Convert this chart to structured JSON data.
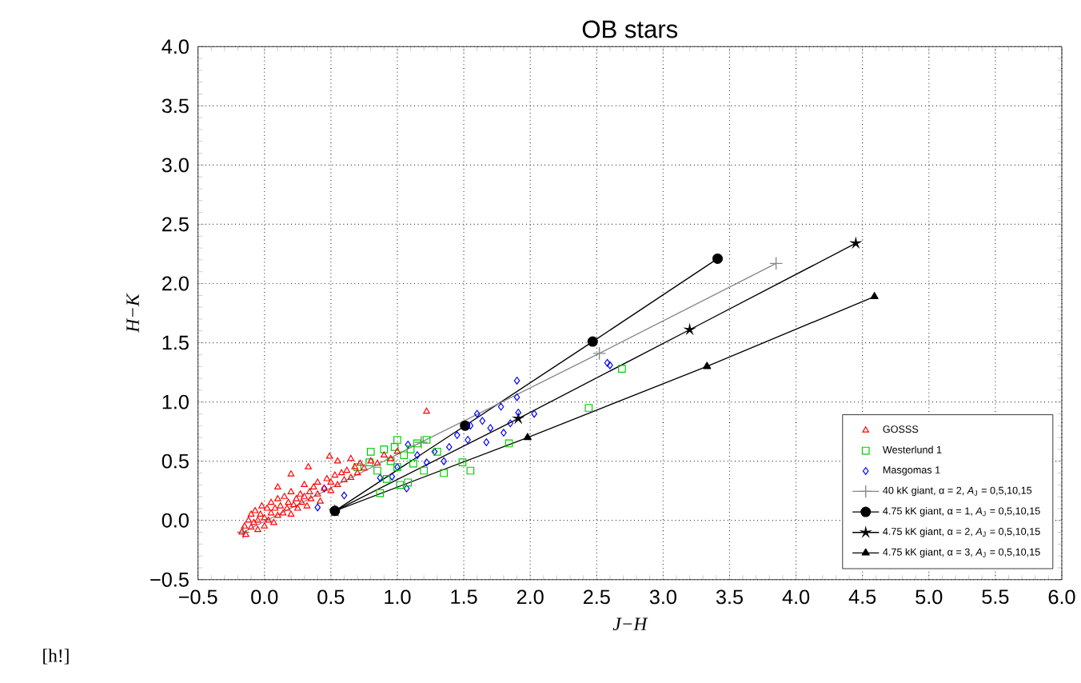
{
  "chart_data": {
    "type": "scatter",
    "title": "OB stars",
    "xlabel": "J−H",
    "ylabel": "H−K",
    "xlim": [
      -0.5,
      6.0
    ],
    "ylim": [
      -0.5,
      4.0
    ],
    "xticks": [
      {
        "value": -0.5,
        "label": "−0.5"
      },
      {
        "value": 0,
        "label": "0.0"
      },
      {
        "value": 0.5,
        "label": "0.5"
      },
      {
        "value": 1,
        "label": "1.0"
      },
      {
        "value": 1.5,
        "label": "1.5"
      },
      {
        "value": 2,
        "label": "2.0"
      },
      {
        "value": 2.5,
        "label": "2.5"
      },
      {
        "value": 3,
        "label": "3.0"
      },
      {
        "value": 3.5,
        "label": "3.5"
      },
      {
        "value": 4,
        "label": "4.0"
      },
      {
        "value": 4.5,
        "label": "4.5"
      },
      {
        "value": 5,
        "label": "5.0"
      },
      {
        "value": 5.5,
        "label": "5.5"
      },
      {
        "value": 6,
        "label": "6.0"
      }
    ],
    "yticks": [
      {
        "value": -0.5,
        "label": "−0.5"
      },
      {
        "value": 0,
        "label": "0.0"
      },
      {
        "value": 0.5,
        "label": "0.5"
      },
      {
        "value": 1,
        "label": "1.0"
      },
      {
        "value": 1.5,
        "label": "1.5"
      },
      {
        "value": 2,
        "label": "2.0"
      },
      {
        "value": 2.5,
        "label": "2.5"
      },
      {
        "value": 3,
        "label": "3.0"
      },
      {
        "value": 3.5,
        "label": "3.5"
      },
      {
        "value": 4,
        "label": "4.0"
      }
    ],
    "grid": true,
    "legend": "bottom right",
    "annotations": [
      "[h!]"
    ],
    "series": [
      {
        "name": "GOSSS",
        "marker": "triangle",
        "color": "#ff0000",
        "x": [
          -0.17,
          -0.15,
          -0.14,
          -0.12,
          -0.1,
          -0.1,
          -0.08,
          -0.07,
          -0.05,
          -0.05,
          -0.03,
          -0.02,
          0.0,
          0.0,
          0.02,
          0.03,
          0.05,
          0.05,
          0.07,
          0.08,
          0.1,
          0.1,
          0.12,
          0.14,
          0.15,
          0.17,
          0.18,
          0.2,
          0.2,
          0.22,
          0.24,
          0.25,
          0.27,
          0.28,
          0.3,
          0.3,
          0.32,
          0.34,
          0.35,
          0.37,
          0.4,
          0.4,
          0.42,
          0.45,
          0.47,
          0.5,
          0.5,
          0.53,
          0.55,
          0.58,
          0.6,
          0.62,
          0.65,
          0.68,
          0.7,
          0.72,
          0.75,
          0.8,
          0.85,
          0.9,
          0.95,
          0.33,
          0.2,
          0.49,
          0.55,
          1.22,
          0.1,
          1.0,
          0.65
        ],
        "values": [
          -0.1,
          -0.05,
          -0.12,
          0.0,
          -0.06,
          0.05,
          -0.02,
          0.08,
          0.0,
          -0.08,
          0.05,
          0.12,
          0.02,
          -0.05,
          0.1,
          0.0,
          0.06,
          0.15,
          -0.02,
          0.1,
          0.04,
          0.18,
          0.12,
          0.06,
          0.2,
          0.1,
          0.15,
          0.05,
          0.24,
          0.13,
          0.18,
          0.1,
          0.22,
          0.15,
          0.2,
          0.3,
          0.12,
          0.24,
          0.18,
          0.28,
          0.22,
          0.32,
          0.16,
          0.27,
          0.35,
          0.25,
          0.32,
          0.38,
          0.3,
          0.4,
          0.34,
          0.42,
          0.36,
          0.45,
          0.4,
          0.48,
          0.44,
          0.5,
          0.48,
          0.55,
          0.52,
          0.45,
          0.39,
          0.54,
          0.5,
          0.92,
          0.28,
          0.58,
          0.52
        ]
      },
      {
        "name": "Westerlund 1",
        "marker": "square",
        "color": "#00cc00",
        "x": [
          0.79,
          0.8,
          0.85,
          0.87,
          0.9,
          0.92,
          0.95,
          0.98,
          1.0,
          1.02,
          1.05,
          1.08,
          1.1,
          1.12,
          1.15,
          1.22,
          1.2,
          1.3,
          1.35,
          1.49,
          1.55,
          1.84,
          2.44,
          2.69,
          0.7,
          1.0
        ],
        "values": [
          0.49,
          0.58,
          0.42,
          0.23,
          0.6,
          0.35,
          0.5,
          0.62,
          0.45,
          0.3,
          0.55,
          0.32,
          0.6,
          0.48,
          0.65,
          0.68,
          0.42,
          0.58,
          0.4,
          0.49,
          0.42,
          0.65,
          0.95,
          1.28,
          0.45,
          0.68
        ]
      },
      {
        "name": "Masgomas 1",
        "marker": "diamond",
        "color": "#0000ff",
        "x": [
          0.45,
          0.6,
          0.4,
          1.9,
          1.9,
          1.78,
          1.64,
          1.91,
          2.03,
          1.8,
          1.67,
          1.53,
          1.39,
          1.28,
          1.22,
          1.08,
          0.96,
          1.07,
          0.87,
          2.58,
          2.6,
          1.0,
          1.15,
          1.45,
          1.7,
          1.85,
          1.55,
          1.35,
          1.6
        ],
        "values": [
          0.27,
          0.21,
          0.11,
          1.18,
          1.04,
          0.96,
          0.84,
          0.91,
          0.9,
          0.74,
          0.66,
          0.68,
          0.62,
          0.58,
          0.49,
          0.64,
          0.37,
          0.27,
          0.36,
          1.33,
          1.31,
          0.45,
          0.55,
          0.72,
          0.78,
          0.82,
          0.8,
          0.5,
          0.9
        ]
      },
      {
        "name": "40 kK giant,    α = 2, *A*$_{J}$ = 0,5,10,15",
        "type": "line",
        "marker": "cross",
        "color": "#888888",
        "x": [
          -0.16,
          1.18,
          2.52,
          3.85
        ],
        "values": [
          -0.1,
          0.66,
          1.41,
          2.17
        ]
      },
      {
        "name": "4.75 kK giant, α = 1, *A*$_{J}$ = 0,5,10,15",
        "type": "line",
        "marker": "circle",
        "color": "#000000",
        "x": [
          0.53,
          1.51,
          2.47,
          3.41
        ],
        "values": [
          0.08,
          0.8,
          1.51,
          2.21
        ]
      },
      {
        "name": "4.75 kK giant, α = 2, *A*$_{J}$ = 0,5,10,15",
        "type": "line",
        "marker": "star",
        "color": "#000000",
        "x": [
          0.53,
          1.91,
          3.2,
          4.45
        ],
        "values": [
          0.08,
          0.86,
          1.61,
          2.34
        ]
      },
      {
        "name": "4.75 kK giant, α = 3, *A*$_{J}$ = 0,5,10,15",
        "type": "line",
        "marker": "triangle",
        "color": "#000000",
        "x": [
          0.53,
          1.98,
          3.33,
          4.59
        ],
        "values": [
          0.08,
          0.7,
          1.3,
          1.89
        ]
      }
    ]
  }
}
